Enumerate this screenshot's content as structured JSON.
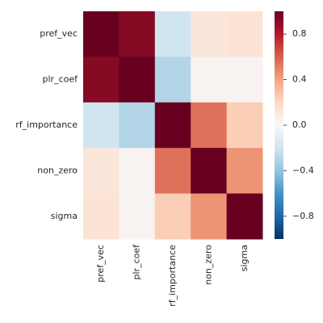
{
  "chart_data": {
    "type": "heatmap",
    "xcategories": [
      "pref_vec",
      "plr_coef",
      "rf_importance",
      "non_zero",
      "sigma"
    ],
    "ycategories": [
      "pref_vec",
      "plr_coef",
      "rf_importance",
      "non_zero",
      "sigma"
    ],
    "values": [
      [
        1,
        0.92,
        -0.2,
        0.12,
        0.14
      ],
      [
        0.92,
        1,
        -0.3,
        0.03,
        0.03
      ],
      [
        -0.2,
        -0.3,
        1,
        0.55,
        0.25
      ],
      [
        0.12,
        0.03,
        0.55,
        1,
        0.45
      ],
      [
        0.14,
        0.03,
        0.25,
        0.45,
        1
      ]
    ],
    "clim": [
      -1,
      1
    ],
    "cticks": [
      {
        "value": -0.8,
        "label": "−0.8"
      },
      {
        "value": -0.4,
        "label": "−0.4"
      },
      {
        "value": 0,
        "label": "0.0"
      },
      0.4,
      0.8
    ],
    "colorscale": [
      "#053061",
      "#2166ac",
      "#4393c3",
      "#92c5de",
      "#d1e5f0",
      "#f7f7f7",
      "#fddbc7",
      "#f4a582",
      "#d6604d",
      "#b2182b",
      "#67001f"
    ]
  }
}
